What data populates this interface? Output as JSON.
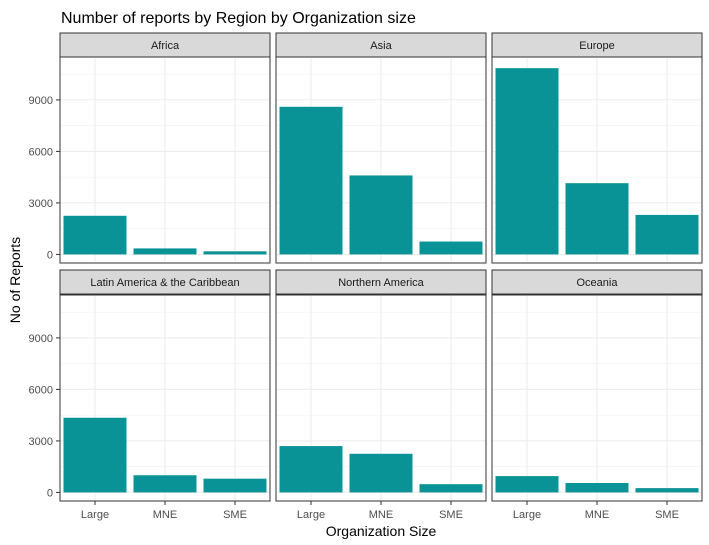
{
  "chart_data": {
    "type": "bar",
    "title": "Number of reports by Region by Organization size",
    "xlabel": "Organization Size",
    "ylabel": "No of Reports",
    "categories": [
      "Large",
      "MNE",
      "SME"
    ],
    "ylim": [
      -500,
      11500
    ],
    "yticks": [
      0,
      3000,
      6000,
      9000
    ],
    "ytick_labels": [
      "0",
      "3000",
      "6000",
      "9000"
    ],
    "grid": true,
    "bar_color": "#0a9396",
    "panels": [
      {
        "name": "Africa",
        "values": [
          2250,
          350,
          180
        ]
      },
      {
        "name": "Asia",
        "values": [
          8600,
          4600,
          750
        ]
      },
      {
        "name": "Europe",
        "values": [
          10850,
          4150,
          2300
        ]
      },
      {
        "name": "Latin America & the Caribbean",
        "values": [
          4350,
          1000,
          800
        ]
      },
      {
        "name": "Northern America",
        "values": [
          2700,
          2250,
          480
        ]
      },
      {
        "name": "Oceania",
        "values": [
          950,
          550,
          250
        ]
      }
    ]
  }
}
